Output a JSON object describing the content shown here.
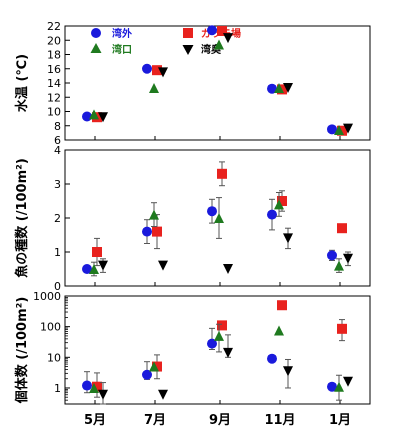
{
  "colors": {
    "湾外": "#1a1adc",
    "ガラモ場": "#e8221e",
    "湾口": "#1f7a1f",
    "湾奥": "#000000"
  },
  "x_labels": [
    "5月",
    "7月",
    "9月",
    "11月",
    "1月"
  ],
  "chart_data": [
    {
      "type": "scatter",
      "ylabel": "水温 (℃)",
      "ylim": [
        6,
        22
      ],
      "yticks": [
        "6",
        "8",
        "10",
        "12",
        "14",
        "16",
        "18",
        "20",
        "22"
      ],
      "legend": [
        "湾外",
        "ガラモ場",
        "湾口",
        "湾奥"
      ],
      "legend_position": "top",
      "series": [
        {
          "name": "湾外",
          "marker": "circle",
          "values": [
            9.3,
            16.0,
            21.4,
            13.2,
            7.5
          ]
        },
        {
          "name": "ガラモ場",
          "marker": "square",
          "values": [
            9.2,
            15.8,
            21.3,
            13.1,
            7.3
          ]
        },
        {
          "name": "湾口",
          "marker": "triangle-up",
          "values": [
            9.6,
            13.3,
            19.4,
            13.3,
            7.4
          ]
        },
        {
          "name": "湾奥",
          "marker": "triangle-down",
          "values": [
            9.2,
            15.5,
            20.3,
            13.3,
            7.6
          ]
        }
      ]
    },
    {
      "type": "scatter",
      "ylabel": "魚の種数 (/100m²)",
      "ylim": [
        0,
        4
      ],
      "yticks": [
        "0",
        "1",
        "2",
        "3",
        "4"
      ],
      "series": [
        {
          "name": "湾外",
          "marker": "circle",
          "values": [
            0.5,
            1.6,
            2.2,
            2.1,
            0.9
          ],
          "err": [
            0.1,
            0.35,
            0.35,
            0.45,
            0.15
          ]
        },
        {
          "name": "ガラモ場",
          "marker": "square",
          "values": [
            1.0,
            1.6,
            3.3,
            2.5,
            1.7
          ],
          "err": [
            0.4,
            0.5,
            0.35,
            0.3,
            0.0
          ]
        },
        {
          "name": "湾口",
          "marker": "triangle-up",
          "values": [
            0.5,
            2.1,
            2.0,
            2.4,
            0.6
          ],
          "err": [
            0.2,
            0.35,
            0.6,
            0.35,
            0.2
          ]
        },
        {
          "name": "湾奥",
          "marker": "triangle-down",
          "values": [
            0.6,
            0.6,
            0.5,
            1.4,
            0.8
          ],
          "err": [
            0.2,
            0.0,
            0.0,
            0.3,
            0.2
          ]
        }
      ]
    },
    {
      "type": "scatter",
      "ylabel": "個体数 (/100m²)",
      "yscale": "log",
      "ylim": [
        0.3,
        1000
      ],
      "yticks": [
        "1",
        "10",
        "100",
        "1000"
      ],
      "series": [
        {
          "name": "湾外",
          "marker": "circle",
          "values": [
            1.2,
            2.7,
            28,
            9,
            1.1
          ],
          "err_lo": [
            0.5,
            0.8,
            10,
            0,
            0
          ],
          "err_hi": [
            2.2,
            4.5,
            60,
            0,
            0
          ]
        },
        {
          "name": "ガラモ場",
          "marker": "square",
          "values": [
            1.1,
            5,
            110,
            500,
            85
          ],
          "err_lo": [
            0.6,
            3,
            0,
            0,
            50
          ],
          "err_hi": [
            2.0,
            7,
            0,
            0,
            85
          ]
        },
        {
          "name": "湾口",
          "marker": "triangle-up",
          "values": [
            1.0,
            5,
            50,
            75,
            1.1
          ],
          "err_lo": [
            0,
            0,
            35,
            0,
            0.7
          ],
          "err_hi": [
            0,
            0,
            70,
            0,
            1.5
          ]
        },
        {
          "name": "湾奥",
          "marker": "triangle-down",
          "values": [
            0.6,
            0.6,
            14,
            3.5,
            1.6
          ],
          "err_lo": [
            0.4,
            0,
            4,
            2.5,
            0
          ],
          "err_hi": [
            0.9,
            0,
            40,
            5,
            0
          ]
        }
      ]
    }
  ]
}
